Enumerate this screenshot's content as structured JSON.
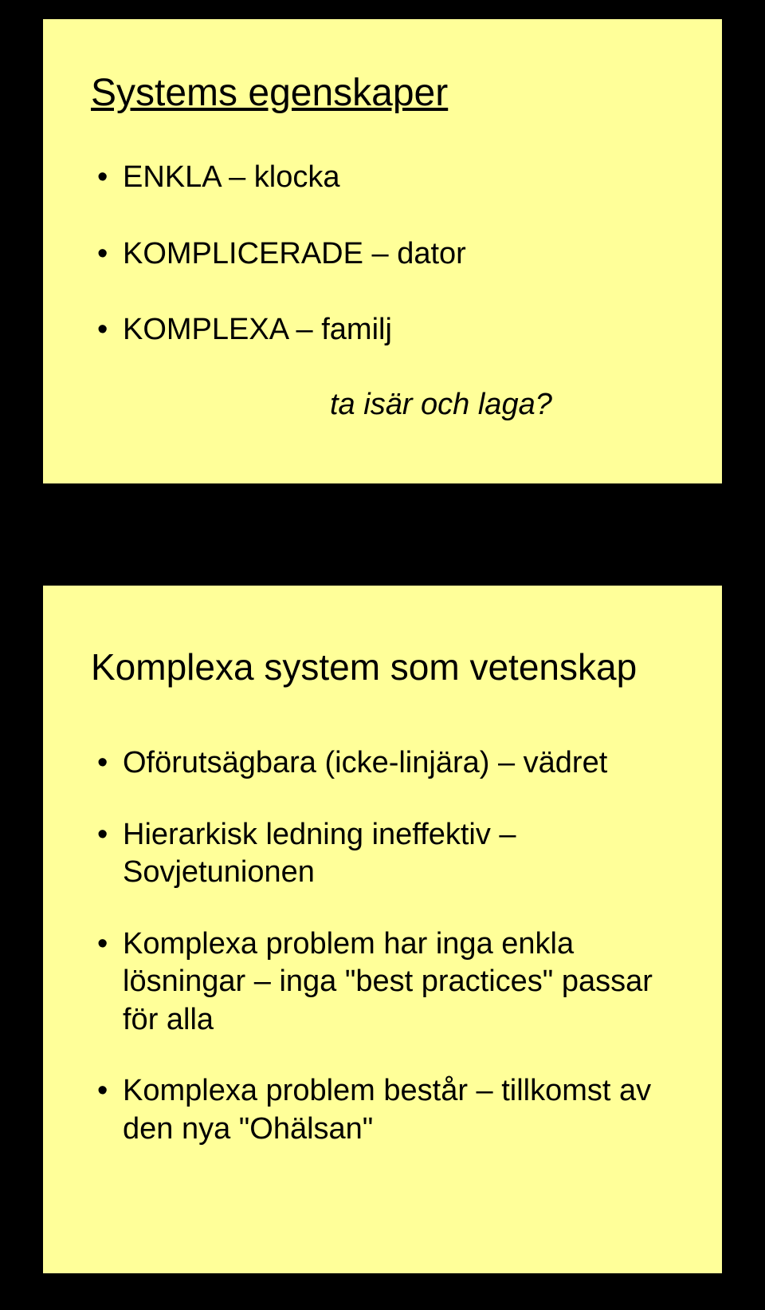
{
  "colors": {
    "page_bg": "#000000",
    "slide_bg": "#ffff99",
    "slide_border": "#000000",
    "text": "#000000"
  },
  "typography": {
    "title_fontsize_pt": 36,
    "body_fontsize_pt": 28,
    "font_family": "Arial"
  },
  "slide1": {
    "title": "Systems egenskaper",
    "bullets": [
      "ENKLA – klocka",
      "KOMPLICERADE – dator",
      "KOMPLEXA – familj"
    ],
    "tagline": "ta isär och laga?"
  },
  "slide2": {
    "title": "Komplexa system som vetenskap",
    "bullets": [
      "Oförutsägbara (icke-linjära) – vädret",
      "Hierarkisk ledning ineffektiv – Sovjetunionen",
      "Komplexa problem har inga enkla lösningar – inga \"best practices\" passar för alla",
      "Komplexa problem består – tillkomst av den nya \"Ohälsan\""
    ]
  }
}
